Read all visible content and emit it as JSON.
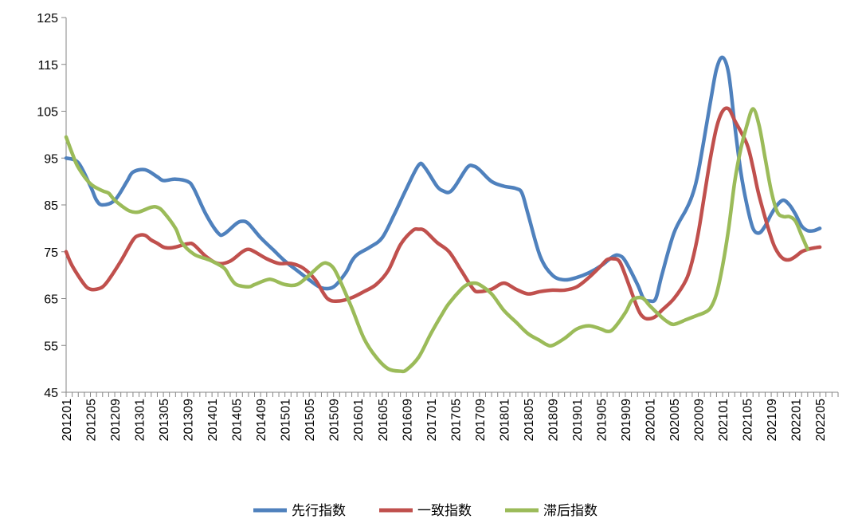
{
  "chart_data": {
    "type": "line",
    "title": "",
    "xlabel": "",
    "ylabel": "",
    "ylim": [
      45,
      125
    ],
    "yticks": [
      45,
      55,
      65,
      75,
      85,
      95,
      105,
      115,
      125
    ],
    "ytick_labels": [
      "45",
      "55",
      "65",
      "75",
      "85",
      "95",
      "105",
      "115",
      "125"
    ],
    "x_range": [
      0,
      127
    ],
    "x_tick_labels": [
      "201201",
      "201205",
      "201209",
      "201301",
      "201305",
      "201309",
      "201401",
      "201405",
      "201409",
      "201501",
      "201505",
      "201509",
      "201601",
      "201605",
      "201609",
      "201701",
      "201705",
      "201709",
      "201801",
      "201805",
      "201809",
      "201901",
      "201905",
      "201909",
      "202001",
      "202005",
      "202009",
      "202101",
      "202105",
      "202109",
      "202201",
      "202205"
    ],
    "x_tick_index": [
      0,
      4,
      8,
      12,
      16,
      20,
      24,
      28,
      32,
      36,
      40,
      44,
      48,
      52,
      56,
      60,
      64,
      68,
      72,
      76,
      80,
      84,
      88,
      92,
      96,
      100,
      104,
      108,
      112,
      116,
      120,
      124
    ],
    "legend_position": "bottom",
    "series": [
      {
        "name": "先行指数",
        "color": "#4f81bd",
        "points": [
          [
            0,
            95
          ],
          [
            2,
            94
          ],
          [
            4,
            89
          ],
          [
            5,
            86
          ],
          [
            6,
            85
          ],
          [
            8,
            86
          ],
          [
            10,
            90
          ],
          [
            11,
            92
          ],
          [
            13,
            92.5
          ],
          [
            15,
            91
          ],
          [
            16,
            90.2
          ],
          [
            18,
            90.5
          ],
          [
            20,
            90
          ],
          [
            21,
            88.5
          ],
          [
            23,
            83
          ],
          [
            25,
            79
          ],
          [
            26,
            78.8
          ],
          [
            28,
            81
          ],
          [
            29,
            81.5
          ],
          [
            30,
            81
          ],
          [
            32,
            78
          ],
          [
            34,
            75.5
          ],
          [
            36,
            73
          ],
          [
            38,
            71
          ],
          [
            40,
            69
          ],
          [
            42,
            67.3
          ],
          [
            44,
            67.5
          ],
          [
            46,
            70.5
          ],
          [
            47,
            73
          ],
          [
            48,
            74.5
          ],
          [
            50,
            76
          ],
          [
            52,
            78
          ],
          [
            54,
            83
          ],
          [
            56,
            88.5
          ],
          [
            58,
            93.5
          ],
          [
            59,
            93
          ],
          [
            61,
            89
          ],
          [
            62,
            88
          ],
          [
            63,
            87.7
          ],
          [
            64,
            89
          ],
          [
            66,
            93
          ],
          [
            67,
            93.3
          ],
          [
            68,
            92.5
          ],
          [
            70,
            90
          ],
          [
            72,
            89
          ],
          [
            74,
            88.5
          ],
          [
            75,
            87.5
          ],
          [
            76,
            83
          ],
          [
            78,
            74
          ],
          [
            80,
            70
          ],
          [
            82,
            69
          ],
          [
            84,
            69.5
          ],
          [
            86,
            70.5
          ],
          [
            88,
            72
          ],
          [
            90,
            74
          ],
          [
            91,
            74.2
          ],
          [
            92,
            73
          ],
          [
            94,
            68
          ],
          [
            95,
            65
          ],
          [
            96,
            64.5
          ],
          [
            97,
            65
          ],
          [
            98,
            70
          ],
          [
            100,
            79
          ],
          [
            102,
            84
          ],
          [
            103,
            87
          ],
          [
            104,
            92
          ],
          [
            106,
            107
          ],
          [
            107,
            114
          ],
          [
            108,
            116.5
          ],
          [
            109,
            113
          ],
          [
            110,
            102
          ],
          [
            111,
            92
          ],
          [
            112,
            85
          ],
          [
            113,
            80
          ],
          [
            114,
            79
          ],
          [
            115,
            80.5
          ],
          [
            116,
            83
          ],
          [
            117,
            85
          ],
          [
            118,
            86
          ],
          [
            119,
            85
          ],
          [
            120,
            83
          ],
          [
            121,
            80.5
          ],
          [
            122,
            79.5
          ],
          [
            123,
            79.5
          ],
          [
            124,
            80
          ]
        ]
      },
      {
        "name": "一致指数",
        "color": "#c0504d",
        "points": [
          [
            0,
            75
          ],
          [
            1,
            72
          ],
          [
            3,
            68
          ],
          [
            4,
            67
          ],
          [
            5,
            67
          ],
          [
            6,
            67.5
          ],
          [
            7,
            69
          ],
          [
            9,
            73
          ],
          [
            11,
            77.5
          ],
          [
            12,
            78.5
          ],
          [
            13,
            78.5
          ],
          [
            14,
            77.5
          ],
          [
            15,
            76.8
          ],
          [
            16,
            76
          ],
          [
            17,
            75.8
          ],
          [
            18,
            76
          ],
          [
            20,
            76.7
          ],
          [
            21,
            76.5
          ],
          [
            23,
            74
          ],
          [
            25,
            72.5
          ],
          [
            27,
            73
          ],
          [
            29,
            75
          ],
          [
            30,
            75.5
          ],
          [
            31,
            75
          ],
          [
            33,
            73.5
          ],
          [
            35,
            72.5
          ],
          [
            37,
            72.5
          ],
          [
            39,
            71.5
          ],
          [
            41,
            69
          ],
          [
            43,
            65
          ],
          [
            45,
            64.5
          ],
          [
            47,
            65.2
          ],
          [
            49,
            66.5
          ],
          [
            51,
            68
          ],
          [
            53,
            71
          ],
          [
            55,
            76.5
          ],
          [
            57,
            79.5
          ],
          [
            58,
            79.8
          ],
          [
            59,
            79.5
          ],
          [
            61,
            77
          ],
          [
            63,
            75
          ],
          [
            65,
            71
          ],
          [
            67,
            67
          ],
          [
            68,
            66.5
          ],
          [
            70,
            67
          ],
          [
            72,
            68.3
          ],
          [
            74,
            67
          ],
          [
            76,
            66
          ],
          [
            78,
            66.5
          ],
          [
            80,
            66.8
          ],
          [
            82,
            66.8
          ],
          [
            84,
            67.5
          ],
          [
            86,
            69.5
          ],
          [
            88,
            72
          ],
          [
            89,
            73.3
          ],
          [
            90,
            73.5
          ],
          [
            91,
            73
          ],
          [
            92,
            70
          ],
          [
            94,
            63
          ],
          [
            95,
            61
          ],
          [
            96,
            60.7
          ],
          [
            97,
            61.2
          ],
          [
            98,
            62.5
          ],
          [
            100,
            65
          ],
          [
            102,
            69
          ],
          [
            103,
            73
          ],
          [
            104,
            79
          ],
          [
            105,
            87
          ],
          [
            106,
            95
          ],
          [
            107,
            101.5
          ],
          [
            108,
            105
          ],
          [
            109,
            105.5
          ],
          [
            110,
            103
          ],
          [
            112,
            98
          ],
          [
            113,
            93
          ],
          [
            114,
            87
          ],
          [
            116,
            78
          ],
          [
            117,
            75
          ],
          [
            118,
            73.5
          ],
          [
            119,
            73.3
          ],
          [
            120,
            74
          ],
          [
            121,
            75
          ],
          [
            122,
            75.5
          ],
          [
            123,
            75.8
          ],
          [
            124,
            76
          ]
        ]
      },
      {
        "name": "滞后指数",
        "color": "#9bbb59",
        "points": [
          [
            0,
            99.5
          ],
          [
            1,
            96
          ],
          [
            2,
            93
          ],
          [
            4,
            89.5
          ],
          [
            6,
            88
          ],
          [
            7,
            87.5
          ],
          [
            8,
            86
          ],
          [
            10,
            84
          ],
          [
            11,
            83.5
          ],
          [
            12,
            83.5
          ],
          [
            14,
            84.5
          ],
          [
            15,
            84.5
          ],
          [
            16,
            83.5
          ],
          [
            18,
            80
          ],
          [
            19,
            77
          ],
          [
            21,
            74.5
          ],
          [
            23,
            73.5
          ],
          [
            24,
            73
          ],
          [
            26,
            71.5
          ],
          [
            27,
            69.5
          ],
          [
            28,
            68
          ],
          [
            30,
            67.5
          ],
          [
            31,
            68
          ],
          [
            33,
            69
          ],
          [
            34,
            69
          ],
          [
            36,
            68
          ],
          [
            38,
            68
          ],
          [
            40,
            70
          ],
          [
            42,
            72.3
          ],
          [
            43,
            72.5
          ],
          [
            44,
            71.5
          ],
          [
            45,
            69
          ],
          [
            47,
            63
          ],
          [
            49,
            56.5
          ],
          [
            51,
            52.5
          ],
          [
            53,
            50
          ],
          [
            55,
            49.5
          ],
          [
            56,
            49.8
          ],
          [
            58,
            52.5
          ],
          [
            60,
            57.5
          ],
          [
            62,
            62
          ],
          [
            63,
            64
          ],
          [
            65,
            67
          ],
          [
            66,
            68
          ],
          [
            67,
            68.3
          ],
          [
            68,
            68
          ],
          [
            70,
            66
          ],
          [
            72,
            62.5
          ],
          [
            74,
            60
          ],
          [
            76,
            57.5
          ],
          [
            78,
            56
          ],
          [
            79,
            55.2
          ],
          [
            80,
            55
          ],
          [
            82,
            56.5
          ],
          [
            84,
            58.5
          ],
          [
            86,
            59.2
          ],
          [
            88,
            58.5
          ],
          [
            89,
            58
          ],
          [
            90,
            58.5
          ],
          [
            92,
            62
          ],
          [
            93,
            64.5
          ],
          [
            94,
            65.2
          ],
          [
            95,
            65
          ],
          [
            96,
            63.5
          ],
          [
            98,
            61
          ],
          [
            99,
            60
          ],
          [
            100,
            59.5
          ],
          [
            102,
            60.5
          ],
          [
            103,
            61
          ],
          [
            104,
            61.5
          ],
          [
            105,
            62
          ],
          [
            106,
            63
          ],
          [
            107,
            66
          ],
          [
            108,
            72
          ],
          [
            109,
            80
          ],
          [
            110,
            90
          ],
          [
            111,
            97
          ],
          [
            112,
            102
          ],
          [
            113,
            105.5
          ],
          [
            114,
            102
          ],
          [
            115,
            95
          ],
          [
            116,
            88
          ],
          [
            117,
            83.5
          ],
          [
            118,
            82.5
          ],
          [
            119,
            82.5
          ],
          [
            120,
            81.5
          ],
          [
            121,
            78.5
          ],
          [
            122,
            75.5
          ]
        ]
      }
    ]
  }
}
